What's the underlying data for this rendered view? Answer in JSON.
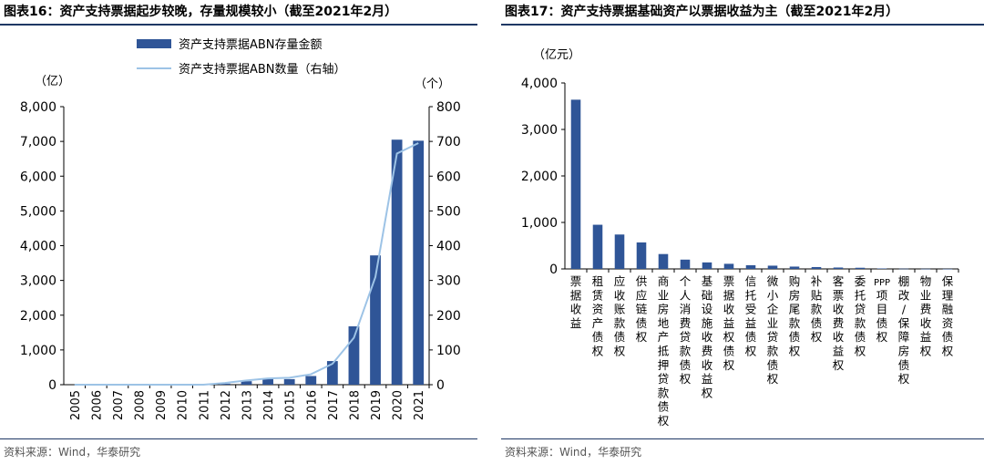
{
  "charts": {
    "left": {
      "title": "图表16：资产支持票据起步较晚，存量规模较小（截至2021年2月）",
      "source": "资料来源：Wind，华泰研究"
    },
    "right": {
      "title": "图表17：资产支持票据基础资产以票据收益为主（截至2021年2月）",
      "source": "资料来源：Wind，华泰研究"
    }
  },
  "colors": {
    "bar": "#2f5597",
    "line": "#9dc3e6",
    "rule": "#1f3864"
  },
  "chart_data": [
    {
      "type": "bar",
      "categories": [
        "2005",
        "2006",
        "2007",
        "2008",
        "2009",
        "2010",
        "2011",
        "2012",
        "2013",
        "2014",
        "2015",
        "2016",
        "2017",
        "2018",
        "2019",
        "2020",
        "2021"
      ],
      "series": [
        {
          "name": "资产支持票据ABN存量金额",
          "type": "bar",
          "axis": "left",
          "values": [
            0,
            0,
            0,
            0,
            0,
            0,
            0,
            30,
            100,
            170,
            160,
            250,
            680,
            1680,
            3720,
            7050,
            7020
          ]
        },
        {
          "name": "资产支持票据ABN数量（右轴）",
          "type": "line",
          "axis": "right",
          "values": [
            0,
            0,
            0,
            0,
            0,
            0,
            0,
            5,
            12,
            18,
            20,
            30,
            60,
            135,
            310,
            665,
            695
          ]
        }
      ],
      "ylabel": "（亿）",
      "y2label": "（个）",
      "ylim": [
        0,
        8000
      ],
      "y2lim": [
        0,
        800
      ],
      "yticks": [
        "0",
        "1,000",
        "2,000",
        "3,000",
        "4,000",
        "5,000",
        "6,000",
        "7,000",
        "8,000"
      ],
      "y2ticks": [
        "0",
        "100",
        "200",
        "300",
        "400",
        "500",
        "600",
        "700",
        "800"
      ],
      "legend": "top-center",
      "grid": false
    },
    {
      "type": "bar",
      "categories": [
        "票据收益",
        "租赁资产债权",
        "应收账款债权",
        "供应链债权",
        "商业房地产抵押贷款债权",
        "个人消费贷款债权",
        "基础设施收费收益权",
        "票据收益权债权",
        "信托受益债权",
        "微小企业贷款债权",
        "购房尾款债权",
        "补贴款债权",
        "客票收费收益权",
        "委托贷款债权",
        "PPP项目债权",
        "棚改/保障房债权",
        "物业费收益权",
        "保理融资债权"
      ],
      "values": [
        3640,
        950,
        740,
        570,
        320,
        200,
        140,
        110,
        80,
        70,
        50,
        40,
        30,
        25,
        10,
        5,
        3,
        2
      ],
      "ylabel": "（亿元）",
      "ylim": [
        0,
        4000
      ],
      "yticks": [
        "0",
        "1,000",
        "2,000",
        "3,000",
        "4,000"
      ],
      "grid": false
    }
  ]
}
